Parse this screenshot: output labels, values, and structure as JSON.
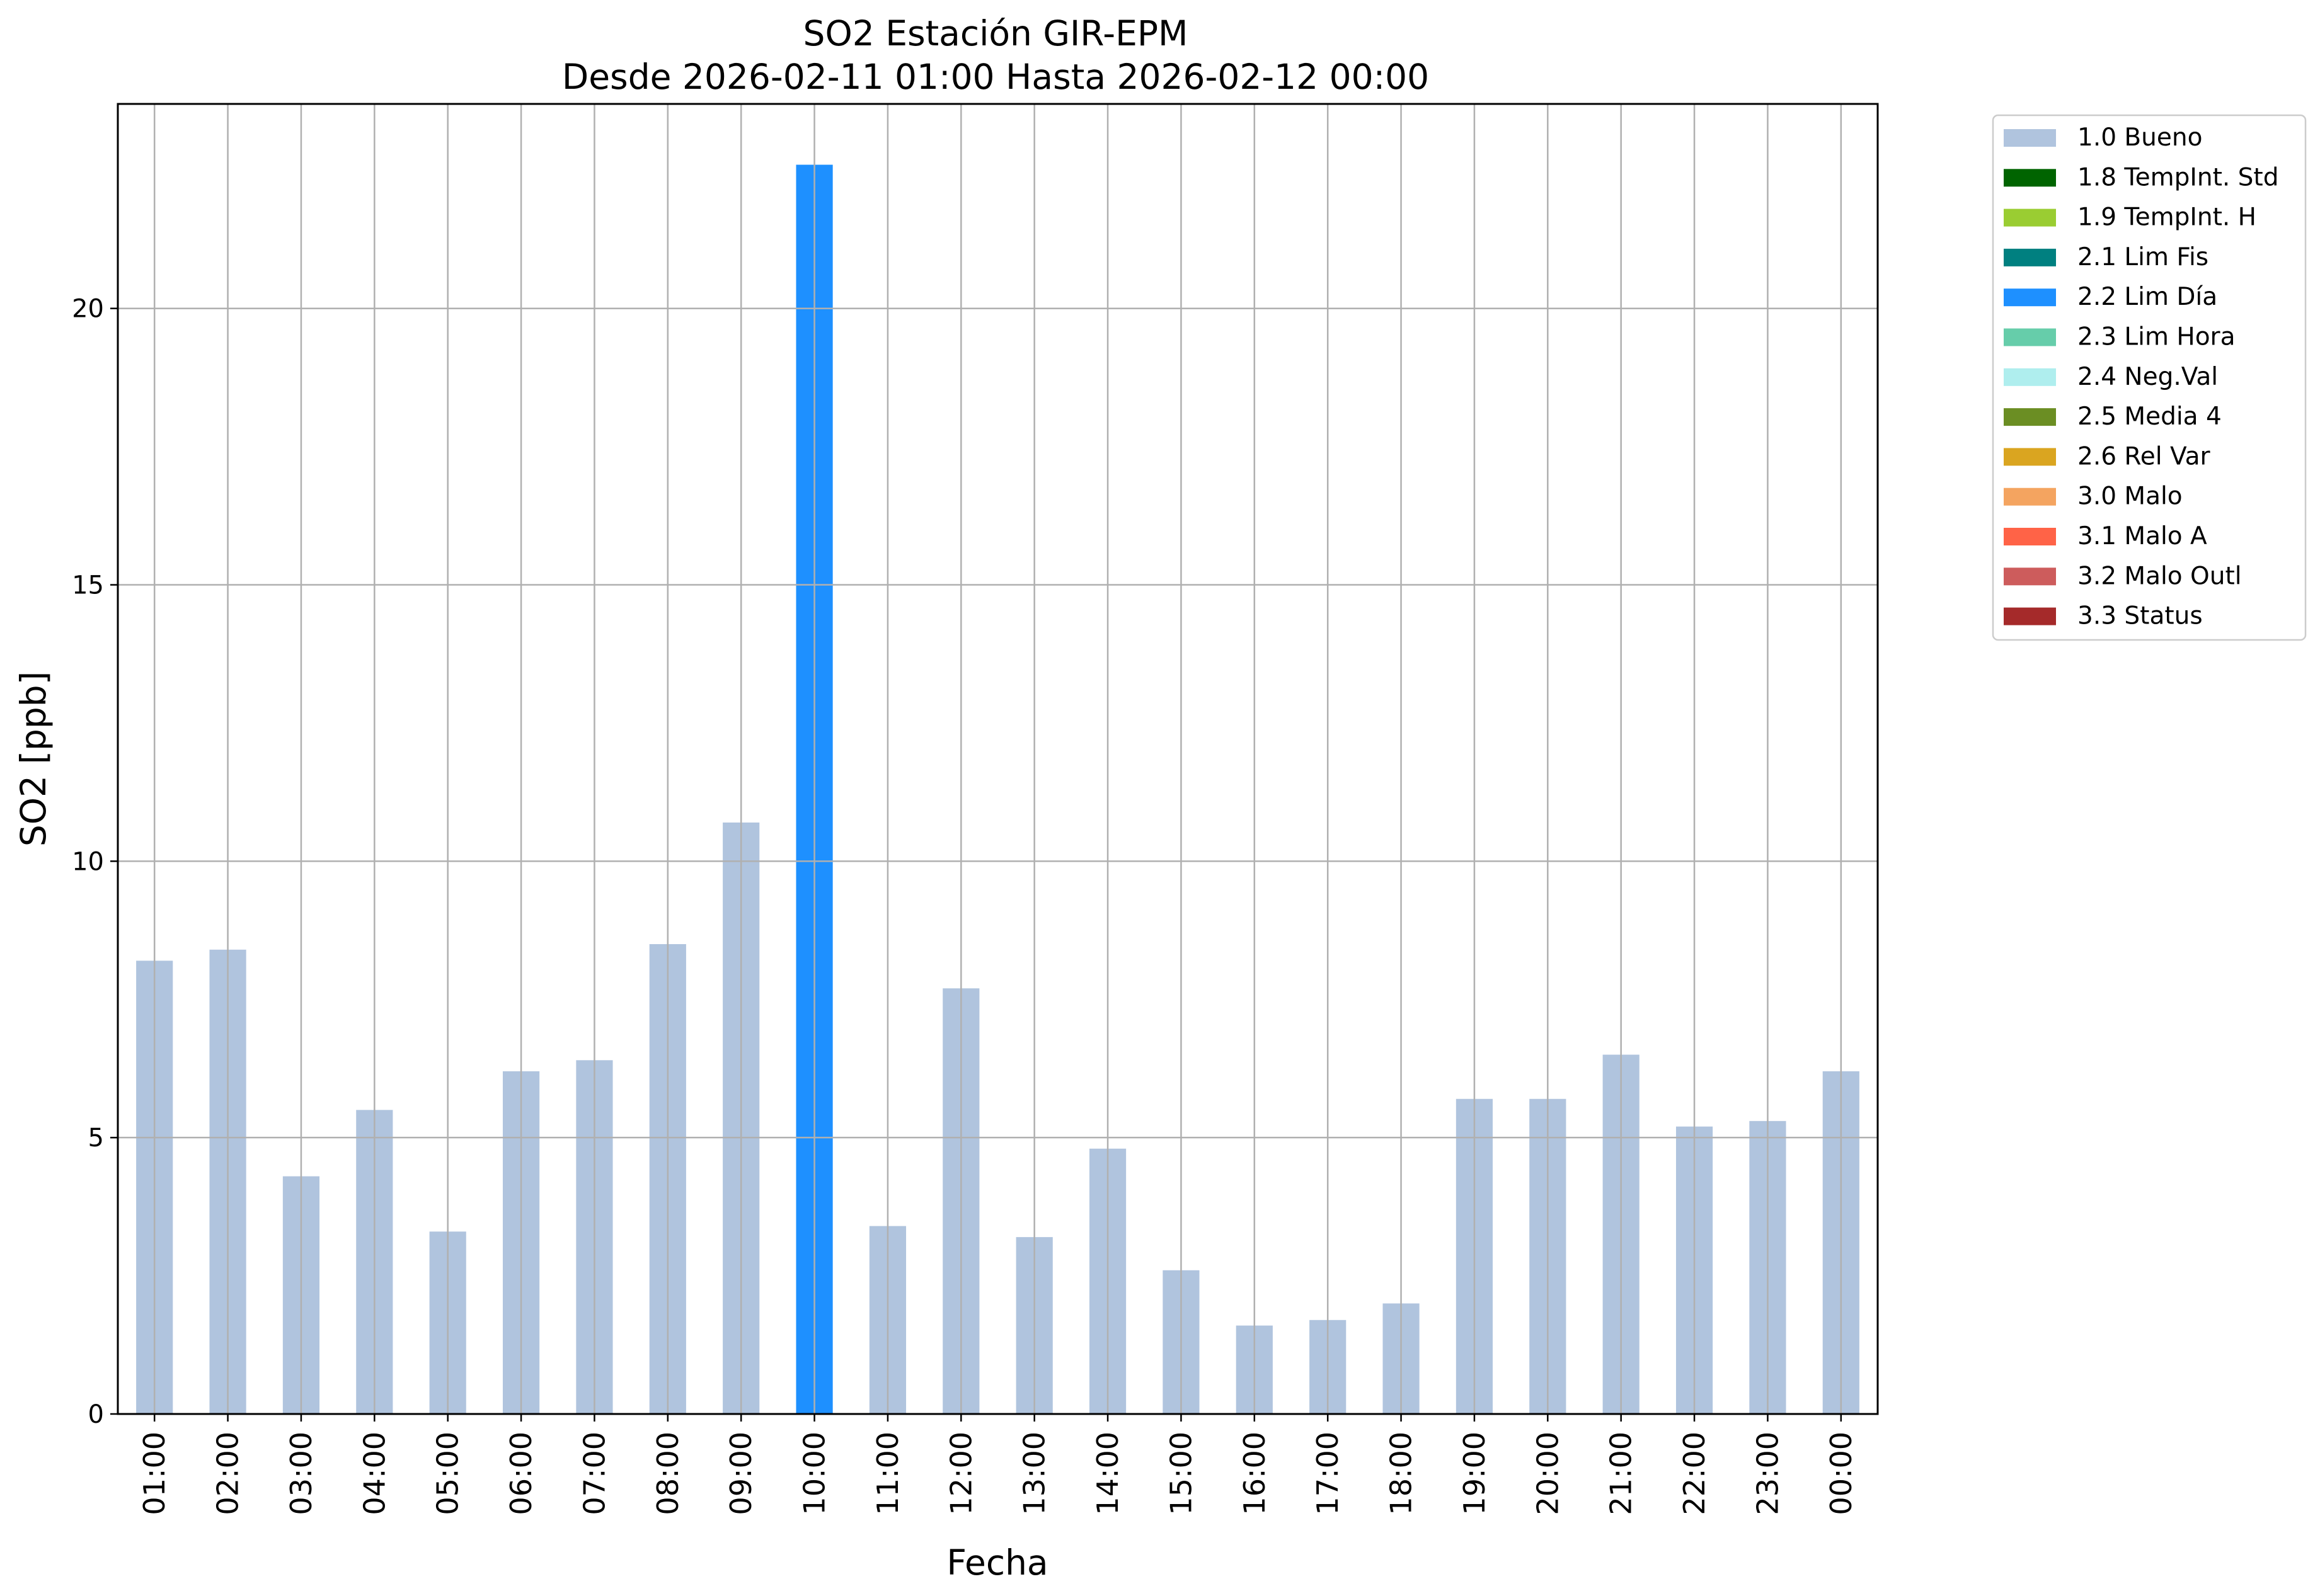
{
  "chart_data": {
    "type": "bar",
    "title": "SO2 Estación GIR-EPM",
    "subtitle": "Desde 2026-02-11 01:00 Hasta 2026-02-12 00:00",
    "xlabel": "Fecha",
    "ylabel": "SO2 [ppb]",
    "ylim": [
      0,
      23.7
    ],
    "yticks": [
      0,
      5,
      10,
      15,
      20
    ],
    "grid": true,
    "legend_position": "outside-top-right",
    "categories": [
      "01:00",
      "02:00",
      "03:00",
      "04:00",
      "05:00",
      "06:00",
      "07:00",
      "08:00",
      "09:00",
      "10:00",
      "11:00",
      "12:00",
      "13:00",
      "14:00",
      "15:00",
      "16:00",
      "17:00",
      "18:00",
      "19:00",
      "20:00",
      "21:00",
      "22:00",
      "23:00",
      "00:00"
    ],
    "values": [
      8.2,
      8.4,
      4.3,
      5.5,
      3.3,
      6.2,
      6.4,
      8.5,
      10.7,
      22.6,
      3.4,
      7.7,
      3.2,
      4.8,
      2.6,
      1.6,
      1.7,
      2.0,
      5.7,
      5.7,
      6.5,
      5.2,
      5.3,
      6.2
    ],
    "flags": [
      "1.0 Bueno",
      "1.0 Bueno",
      "1.0 Bueno",
      "1.0 Bueno",
      "1.0 Bueno",
      "1.0 Bueno",
      "1.0 Bueno",
      "1.0 Bueno",
      "1.0 Bueno",
      "2.2 Lim Día",
      "1.0 Bueno",
      "1.0 Bueno",
      "1.0 Bueno",
      "1.0 Bueno",
      "1.0 Bueno",
      "1.0 Bueno",
      "1.0 Bueno",
      "1.0 Bueno",
      "1.0 Bueno",
      "1.0 Bueno",
      "1.0 Bueno",
      "1.0 Bueno",
      "1.0 Bueno",
      "1.0 Bueno"
    ],
    "legend": [
      {
        "label": "1.0 Bueno",
        "color": "#b0c4de"
      },
      {
        "label": "1.8 TempInt. Std",
        "color": "#006400"
      },
      {
        "label": "1.9 TempInt. H",
        "color": "#9acd32"
      },
      {
        "label": "2.1 Lim Fis",
        "color": "#008080"
      },
      {
        "label": "2.2 Lim Día",
        "color": "#1e90ff"
      },
      {
        "label": "2.3 Lim Hora",
        "color": "#66cdaa"
      },
      {
        "label": "2.4 Neg.Val",
        "color": "#afeeee"
      },
      {
        "label": "2.5 Media 4",
        "color": "#6b8e23"
      },
      {
        "label": "2.6 Rel Var",
        "color": "#daa520"
      },
      {
        "label": "3.0 Malo",
        "color": "#f4a460"
      },
      {
        "label": "3.1 Malo A",
        "color": "#ff6347"
      },
      {
        "label": "3.2 Malo Outl",
        "color": "#cd5c5c"
      },
      {
        "label": "3.3 Status",
        "color": "#a52a2a"
      }
    ]
  }
}
